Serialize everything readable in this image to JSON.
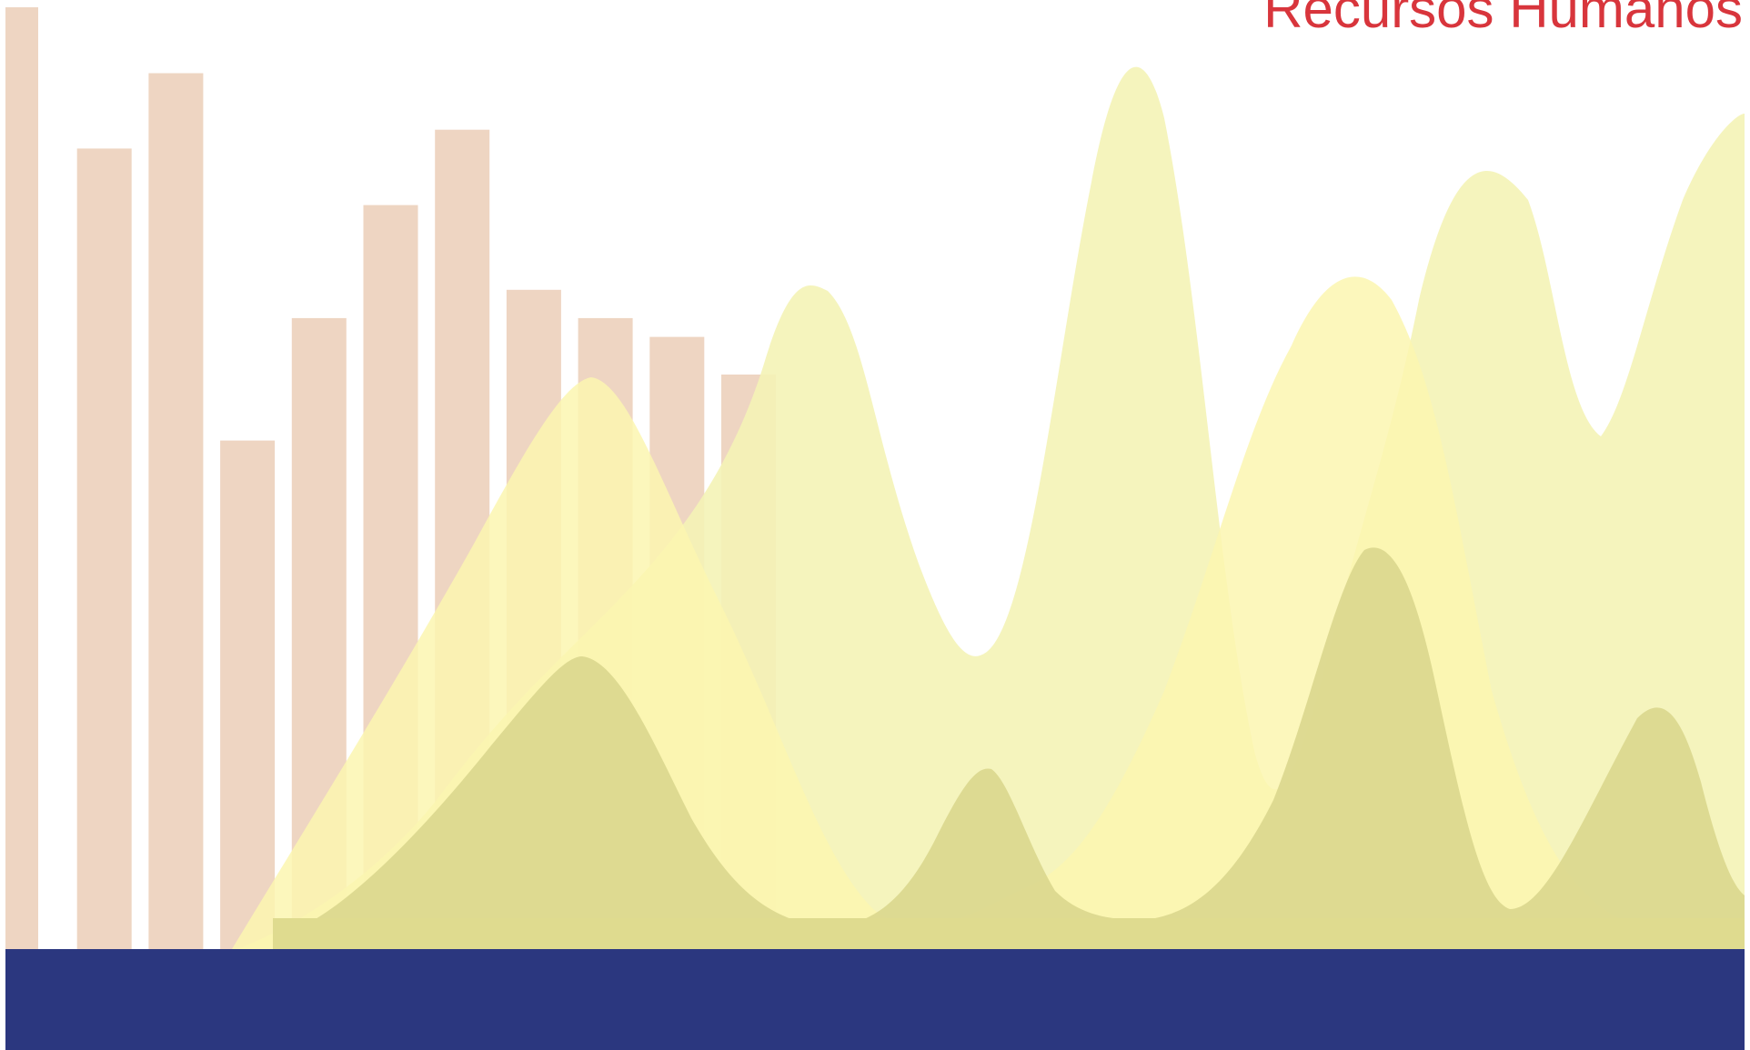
{
  "header": {
    "title": "Recursos Humanos"
  },
  "decoration": {
    "bar_heights": [
      1.0,
      0.85,
      0.93,
      0.54,
      0.67,
      0.79,
      0.87,
      0.7,
      0.67,
      0.65,
      0.61
    ],
    "colors": {
      "title": "#d8353c",
      "bars": "#eed5c2",
      "wave_light": "#f4f3b6",
      "wave_pale": "#fbf6b0",
      "wave_olive": "#d9d68c",
      "baseline_band": "#dfdb8f",
      "footer_band": "#2b377f",
      "background": "#ffffff"
    }
  }
}
